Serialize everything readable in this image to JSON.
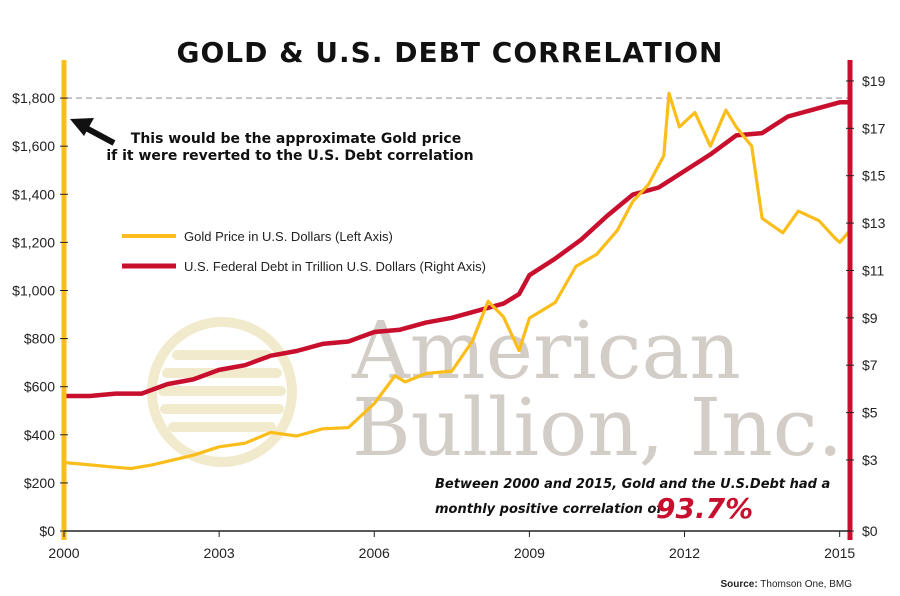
{
  "colors": {
    "gold": "#fbbd1a",
    "debt": "#c8102e",
    "watermark": "#d9cfa8"
  },
  "watermark": {
    "line1": "American",
    "line2": "Bullion, Inc."
  },
  "annotation": {
    "line1": "This would be the approximate Gold price",
    "line2": "if it were reverted to the U.S. Debt correlation"
  },
  "correlation": {
    "line1": "Between 2000 and 2015, Gold and the U.S.Debt had a",
    "line2": "monthly positive correlation of",
    "value": "93.7%"
  },
  "source": {
    "label": "Source:",
    "text": "Thomson One, BMG"
  },
  "chart_data": {
    "type": "line",
    "title": "GOLD & U.S. DEBT CORRELATION",
    "xlabel": "",
    "x_ticks": [
      "2000",
      "2003",
      "2006",
      "2009",
      "2012",
      "2015"
    ],
    "xlim": [
      2000,
      2015.2
    ],
    "left_axis": {
      "ylim": [
        0,
        1950
      ],
      "ticks": [
        0,
        200,
        400,
        600,
        800,
        1000,
        1200,
        1400,
        1600,
        1800
      ],
      "tick_labels": [
        "$0",
        "$200",
        "$400",
        "$600",
        "$800",
        "$1,000",
        "$1,200",
        "$1,400",
        "$1,600",
        "$1,800"
      ]
    },
    "right_axis": {
      "ylim": [
        0,
        19.8
      ],
      "ticks": [
        0,
        3,
        5,
        7,
        9,
        11,
        13,
        15,
        17,
        19
      ],
      "tick_labels": [
        "$0",
        "$3",
        "$5",
        "$7",
        "$9",
        "$11",
        "$13",
        "$15",
        "$17",
        "$19"
      ]
    },
    "reference_line": {
      "value": 1800,
      "axis": "left",
      "style": "dashed"
    },
    "legend_placement": "upper-left",
    "series": [
      {
        "name": "Gold Price in U.S. Dollars (Left Axis)",
        "axis": "left",
        "x": [
          2000.0,
          2000.5,
          2001.0,
          2001.3,
          2001.7,
          2002.0,
          2002.5,
          2003.0,
          2003.5,
          2004.0,
          2004.5,
          2005.0,
          2005.5,
          2006.0,
          2006.4,
          2006.6,
          2007.0,
          2007.5,
          2007.9,
          2008.2,
          2008.5,
          2008.8,
          2009.0,
          2009.5,
          2009.9,
          2010.3,
          2010.7,
          2011.0,
          2011.3,
          2011.6,
          2011.7,
          2011.9,
          2012.2,
          2012.5,
          2012.8,
          2013.0,
          2013.3,
          2013.5,
          2013.9,
          2014.2,
          2014.6,
          2014.9,
          2015.0,
          2015.2
        ],
        "y": [
          285,
          275,
          265,
          260,
          275,
          290,
          315,
          350,
          365,
          410,
          395,
          425,
          430,
          530,
          645,
          620,
          655,
          665,
          790,
          955,
          890,
          750,
          885,
          950,
          1100,
          1150,
          1250,
          1370,
          1440,
          1560,
          1820,
          1680,
          1740,
          1600,
          1750,
          1680,
          1600,
          1300,
          1240,
          1330,
          1290,
          1220,
          1200,
          1250
        ]
      },
      {
        "name": "U.S. Federal Debt in Trillion U.S. Dollars (Right Axis)",
        "axis": "right",
        "x": [
          2000.0,
          2000.5,
          2001.0,
          2001.5,
          2002.0,
          2002.5,
          2003.0,
          2003.5,
          2004.0,
          2004.5,
          2005.0,
          2005.5,
          2006.0,
          2006.5,
          2007.0,
          2007.5,
          2008.0,
          2008.5,
          2008.8,
          2009.0,
          2009.5,
          2010.0,
          2010.5,
          2011.0,
          2011.5,
          2012.0,
          2012.5,
          2013.0,
          2013.5,
          2014.0,
          2014.5,
          2015.0,
          2015.2
        ],
        "y": [
          5.7,
          5.7,
          5.8,
          5.8,
          6.2,
          6.4,
          6.8,
          7.0,
          7.4,
          7.6,
          7.9,
          8.0,
          8.4,
          8.5,
          8.8,
          9.0,
          9.3,
          9.6,
          10.0,
          10.8,
          11.5,
          12.3,
          13.3,
          14.2,
          14.5,
          15.2,
          15.9,
          16.7,
          16.8,
          17.5,
          17.8,
          18.1,
          18.1
        ]
      }
    ]
  }
}
